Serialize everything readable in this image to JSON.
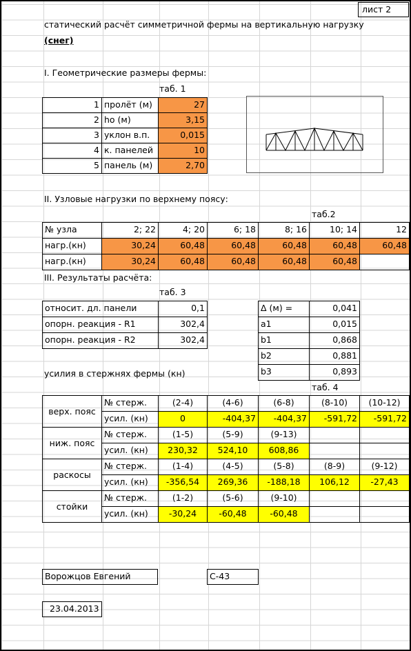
{
  "sheet_label": "лист 2",
  "title_line1": "статический расчёт симметричной фермы на вертикальную нагрузку",
  "title_line2": "(снег)",
  "section1": "I. Геометрические размеры фермы:",
  "tab1_caption": "таб. 1",
  "tab1": [
    {
      "n": "1",
      "label": "пролёт (м)",
      "value": "27"
    },
    {
      "n": "2",
      "label": "ho (м)",
      "value": "3,15"
    },
    {
      "n": "3",
      "label": "уклон в.п.",
      "value": "0,015"
    },
    {
      "n": "4",
      "label": "к. панелей",
      "value": "10"
    },
    {
      "n": "5",
      "label": "панель (м)",
      "value": "2,70"
    }
  ],
  "section2": "II. Узловые нагрузки по верхнему поясу:",
  "tab2_caption": "таб.2",
  "tab2_header": [
    "№ узла",
    "2; 22",
    "4; 20",
    "6; 18",
    "8; 16",
    "10; 14",
    "12"
  ],
  "tab2_rows": [
    [
      "нагр.(кн)",
      "30,24",
      "60,48",
      "60,48",
      "60,48",
      "60,48",
      "60,48"
    ],
    [
      "нагр.(кн)",
      "30,24",
      "60,48",
      "60,48",
      "60,48",
      "60,48",
      ""
    ]
  ],
  "section3": "III. Результаты расчёта:",
  "tab3_caption": "таб. 3",
  "tab3_left": [
    {
      "label": "относит. дл. панели",
      "value": "0,1"
    },
    {
      "label": "опорн. реакция - R1",
      "value": "302,4"
    },
    {
      "label": "опорн. реакция - R2",
      "value": "302,4"
    }
  ],
  "tab3_right": [
    {
      "label": "Δ (м) =",
      "value": "0,041"
    },
    {
      "label": "a1",
      "value": "0,015"
    },
    {
      "label": "b1",
      "value": "0,868"
    },
    {
      "label": "b2",
      "value": "0,881"
    },
    {
      "label": "b3",
      "value": "0,893"
    }
  ],
  "forces_label": "усилия в стержнях фермы (кн)",
  "tab4_caption": "таб. 4",
  "tab4": [
    {
      "group": "верх. пояс",
      "rods": [
        "(2-4)",
        "(4-6)",
        "(6-8)",
        "(8-10)",
        "(10-12)"
      ],
      "forces": [
        "0",
        "-404,37",
        "-404,37",
        "-591,72",
        "-591,72"
      ]
    },
    {
      "group": "ниж. пояс",
      "rods": [
        "(1-5)",
        "(5-9)",
        "(9-13)",
        "",
        ""
      ],
      "forces": [
        "230,32",
        "524,10",
        "608,86",
        "",
        ""
      ]
    },
    {
      "group": "раскосы",
      "rods": [
        "(1-4)",
        "(4-5)",
        "(5-8)",
        "(8-9)",
        "(9-12)"
      ],
      "forces": [
        "-356,54",
        "269,36",
        "-188,18",
        "106,12",
        "-27,43"
      ]
    },
    {
      "group": "стойки",
      "rods": [
        "(1-2)",
        "(5-6)",
        "(9-10)",
        "",
        ""
      ],
      "forces": [
        "-30,24",
        "-60,48",
        "-60,48",
        "",
        ""
      ]
    }
  ],
  "rod_label": "№ стерж.",
  "force_label": "усил. (кн)",
  "author": "Ворожцов Евгений",
  "group_code": "С-43",
  "date": "23.04.2013",
  "colors": {
    "input": "#f79646",
    "result": "#ffff00",
    "grid": "#d6d6d6"
  }
}
